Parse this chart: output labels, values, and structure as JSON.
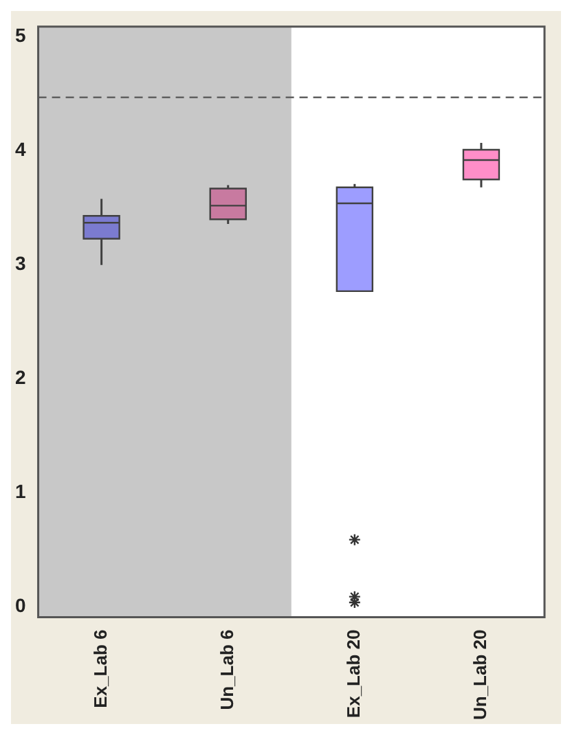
{
  "chart_data": {
    "type": "box",
    "categories": [
      "Ex_Lab 6",
      "Un_Lab 6",
      "Ex_Lab 20",
      "Un_Lab 20"
    ],
    "colors": [
      "#7b7bd0",
      "#c87aa0",
      "#9d9dff",
      "#ff8ec8"
    ],
    "boxes": [
      {
        "low": 3.0,
        "q1": 3.23,
        "median": 3.37,
        "q3": 3.43,
        "high": 3.58
      },
      {
        "low": 3.36,
        "q1": 3.4,
        "median": 3.52,
        "q3": 3.67,
        "high": 3.7
      },
      {
        "low": 2.77,
        "q1": 2.77,
        "median": 3.54,
        "q3": 3.68,
        "high": 3.71,
        "outliers": [
          0.59,
          0.09,
          0.04
        ]
      },
      {
        "low": 3.68,
        "q1": 3.75,
        "median": 3.92,
        "q3": 4.01,
        "high": 4.07
      }
    ],
    "ylim": [
      -0.09,
      5.09
    ],
    "yticks": [
      0,
      1,
      2,
      3,
      4,
      5
    ],
    "ref_lines": [
      {
        "axis": "y",
        "value": 4.47,
        "color": "#606060",
        "line_style": "dashed"
      }
    ],
    "bands": [
      {
        "axis": "x",
        "from": "Ex_Lab 6",
        "to": "Un_Lab 6",
        "color": "#c8c8c8"
      }
    ],
    "grid": false,
    "legend": false,
    "marker": "star"
  }
}
